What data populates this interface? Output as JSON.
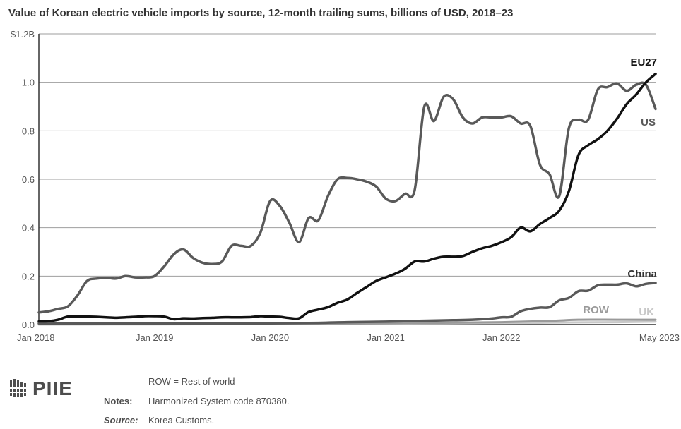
{
  "chart_data": {
    "type": "line",
    "title": "Value of Korean electric vehicle imports by source, 12-month trailing sums, billions of USD, 2018–23",
    "x_tick_labels": [
      "Jan 2018",
      "Jan 2019",
      "Jan 2020",
      "Jan 2021",
      "Jan 2022",
      "May 2023"
    ],
    "y_tick_labels": [
      "0.0",
      "0.2",
      "0.4",
      "0.6",
      "0.8",
      "1.0",
      "$1.2B"
    ],
    "x_range": [
      "2018-01",
      "2023-05"
    ],
    "ylim": [
      0,
      1.2
    ],
    "grid": true,
    "series": [
      {
        "name": "US",
        "color": "#595959",
        "points": [
          [
            "2018-01",
            0.05
          ],
          [
            "2018-02",
            0.055
          ],
          [
            "2018-03",
            0.065
          ],
          [
            "2018-04",
            0.075
          ],
          [
            "2018-05",
            0.12
          ],
          [
            "2018-06",
            0.18
          ],
          [
            "2018-07",
            0.19
          ],
          [
            "2018-08",
            0.193
          ],
          [
            "2018-09",
            0.19
          ],
          [
            "2018-10",
            0.2
          ],
          [
            "2018-11",
            0.195
          ],
          [
            "2018-12",
            0.195
          ],
          [
            "2019-01",
            0.2
          ],
          [
            "2019-02",
            0.24
          ],
          [
            "2019-03",
            0.29
          ],
          [
            "2019-04",
            0.31
          ],
          [
            "2019-05",
            0.275
          ],
          [
            "2019-06",
            0.255
          ],
          [
            "2019-07",
            0.25
          ],
          [
            "2019-08",
            0.26
          ],
          [
            "2019-09",
            0.325
          ],
          [
            "2019-10",
            0.325
          ],
          [
            "2019-11",
            0.325
          ],
          [
            "2019-12",
            0.38
          ],
          [
            "2020-01",
            0.51
          ],
          [
            "2020-02",
            0.49
          ],
          [
            "2020-03",
            0.42
          ],
          [
            "2020-04",
            0.34
          ],
          [
            "2020-05",
            0.44
          ],
          [
            "2020-06",
            0.43
          ],
          [
            "2020-07",
            0.53
          ],
          [
            "2020-08",
            0.6
          ],
          [
            "2020-09",
            0.605
          ],
          [
            "2020-10",
            0.6
          ],
          [
            "2020-11",
            0.59
          ],
          [
            "2020-12",
            0.57
          ],
          [
            "2021-01",
            0.52
          ],
          [
            "2021-02",
            0.51
          ],
          [
            "2021-03",
            0.54
          ],
          [
            "2021-04",
            0.555
          ],
          [
            "2021-05",
            0.9
          ],
          [
            "2021-06",
            0.84
          ],
          [
            "2021-07",
            0.94
          ],
          [
            "2021-08",
            0.93
          ],
          [
            "2021-09",
            0.855
          ],
          [
            "2021-10",
            0.83
          ],
          [
            "2021-11",
            0.855
          ],
          [
            "2021-12",
            0.855
          ],
          [
            "2022-01",
            0.855
          ],
          [
            "2022-02",
            0.86
          ],
          [
            "2022-03",
            0.83
          ],
          [
            "2022-04",
            0.82
          ],
          [
            "2022-05",
            0.66
          ],
          [
            "2022-06",
            0.62
          ],
          [
            "2022-07",
            0.53
          ],
          [
            "2022-08",
            0.81
          ],
          [
            "2022-09",
            0.845
          ],
          [
            "2022-10",
            0.845
          ],
          [
            "2022-11",
            0.97
          ],
          [
            "2022-12",
            0.98
          ],
          [
            "2023-01",
            0.995
          ],
          [
            "2023-02",
            0.965
          ],
          [
            "2023-03",
            0.99
          ],
          [
            "2023-04",
            0.99
          ],
          [
            "2023-05",
            0.89
          ]
        ]
      },
      {
        "name": "EU27",
        "color": "#111111",
        "points": [
          [
            "2018-01",
            0.013
          ],
          [
            "2018-02",
            0.014
          ],
          [
            "2018-03",
            0.02
          ],
          [
            "2018-04",
            0.033
          ],
          [
            "2018-05",
            0.033
          ],
          [
            "2018-06",
            0.033
          ],
          [
            "2018-07",
            0.032
          ],
          [
            "2018-08",
            0.03
          ],
          [
            "2018-09",
            0.028
          ],
          [
            "2018-10",
            0.03
          ],
          [
            "2018-11",
            0.032
          ],
          [
            "2018-12",
            0.035
          ],
          [
            "2019-01",
            0.035
          ],
          [
            "2019-02",
            0.033
          ],
          [
            "2019-03",
            0.022
          ],
          [
            "2019-04",
            0.026
          ],
          [
            "2019-05",
            0.025
          ],
          [
            "2019-06",
            0.027
          ],
          [
            "2019-07",
            0.028
          ],
          [
            "2019-08",
            0.03
          ],
          [
            "2019-09",
            0.03
          ],
          [
            "2019-10",
            0.03
          ],
          [
            "2019-11",
            0.031
          ],
          [
            "2019-12",
            0.035
          ],
          [
            "2020-01",
            0.033
          ],
          [
            "2020-02",
            0.032
          ],
          [
            "2020-03",
            0.027
          ],
          [
            "2020-04",
            0.026
          ],
          [
            "2020-05",
            0.052
          ],
          [
            "2020-06",
            0.062
          ],
          [
            "2020-07",
            0.072
          ],
          [
            "2020-08",
            0.09
          ],
          [
            "2020-09",
            0.103
          ],
          [
            "2020-10",
            0.13
          ],
          [
            "2020-11",
            0.155
          ],
          [
            "2020-12",
            0.18
          ],
          [
            "2021-01",
            0.195
          ],
          [
            "2021-02",
            0.21
          ],
          [
            "2021-03",
            0.23
          ],
          [
            "2021-04",
            0.26
          ],
          [
            "2021-05",
            0.26
          ],
          [
            "2021-06",
            0.272
          ],
          [
            "2021-07",
            0.28
          ],
          [
            "2021-08",
            0.28
          ],
          [
            "2021-09",
            0.283
          ],
          [
            "2021-10",
            0.3
          ],
          [
            "2021-11",
            0.315
          ],
          [
            "2021-12",
            0.325
          ],
          [
            "2022-01",
            0.34
          ],
          [
            "2022-02",
            0.36
          ],
          [
            "2022-03",
            0.4
          ],
          [
            "2022-04",
            0.385
          ],
          [
            "2022-05",
            0.415
          ],
          [
            "2022-06",
            0.44
          ],
          [
            "2022-07",
            0.47
          ],
          [
            "2022-08",
            0.55
          ],
          [
            "2022-09",
            0.7
          ],
          [
            "2022-10",
            0.74
          ],
          [
            "2022-11",
            0.765
          ],
          [
            "2022-12",
            0.8
          ],
          [
            "2023-01",
            0.85
          ],
          [
            "2023-02",
            0.91
          ],
          [
            "2023-03",
            0.95
          ],
          [
            "2023-04",
            1.0
          ],
          [
            "2023-05",
            1.035
          ]
        ]
      },
      {
        "name": "China",
        "color": "#595959",
        "points": [
          [
            "2018-01",
            0.005
          ],
          [
            "2018-06",
            0.005
          ],
          [
            "2019-01",
            0.005
          ],
          [
            "2019-06",
            0.005
          ],
          [
            "2020-01",
            0.005
          ],
          [
            "2020-06",
            0.007
          ],
          [
            "2020-09",
            0.01
          ],
          [
            "2021-01",
            0.012
          ],
          [
            "2021-04",
            0.015
          ],
          [
            "2021-08",
            0.018
          ],
          [
            "2021-10",
            0.02
          ],
          [
            "2021-12",
            0.025
          ],
          [
            "2022-01",
            0.03
          ],
          [
            "2022-02",
            0.032
          ],
          [
            "2022-03",
            0.055
          ],
          [
            "2022-04",
            0.065
          ],
          [
            "2022-05",
            0.07
          ],
          [
            "2022-06",
            0.072
          ],
          [
            "2022-07",
            0.1
          ],
          [
            "2022-08",
            0.11
          ],
          [
            "2022-09",
            0.138
          ],
          [
            "2022-10",
            0.14
          ],
          [
            "2022-11",
            0.162
          ],
          [
            "2022-12",
            0.165
          ],
          [
            "2023-01",
            0.165
          ],
          [
            "2023-02",
            0.17
          ],
          [
            "2023-03",
            0.158
          ],
          [
            "2023-04",
            0.168
          ],
          [
            "2023-05",
            0.172
          ]
        ]
      },
      {
        "name": "ROW",
        "color": "#9a9a9a",
        "points": [
          [
            "2018-01",
            0.003
          ],
          [
            "2019-01",
            0.003
          ],
          [
            "2020-01",
            0.003
          ],
          [
            "2021-01",
            0.005
          ],
          [
            "2021-06",
            0.007
          ],
          [
            "2022-01",
            0.01
          ],
          [
            "2022-06",
            0.015
          ],
          [
            "2022-09",
            0.02
          ],
          [
            "2023-01",
            0.02
          ],
          [
            "2023-05",
            0.02
          ]
        ]
      },
      {
        "name": "UK",
        "color": "#c8c8c8",
        "points": [
          [
            "2018-01",
            0.0
          ],
          [
            "2019-01",
            0.001
          ],
          [
            "2020-01",
            0.002
          ],
          [
            "2021-01",
            0.004
          ],
          [
            "2022-01",
            0.006
          ],
          [
            "2022-06",
            0.008
          ],
          [
            "2023-01",
            0.01
          ],
          [
            "2023-05",
            0.012
          ]
        ]
      }
    ],
    "series_labels": [
      "EU27",
      "US",
      "China",
      "ROW",
      "UK"
    ]
  },
  "footer": {
    "logo_text": "PIIE",
    "abbrev_note": "ROW = Rest of world",
    "notes_label": "Notes:",
    "notes_text": "Harmonized System code 870380.",
    "source_label": "Source:",
    "source_text": "Korea Customs."
  }
}
